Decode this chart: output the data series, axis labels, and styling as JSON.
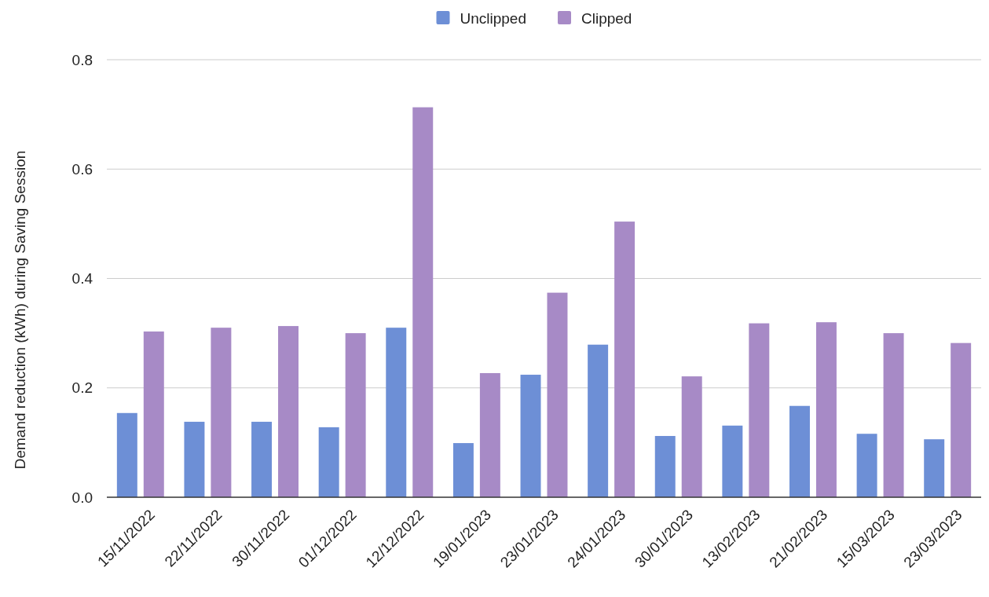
{
  "chart_data": {
    "type": "bar",
    "ylabel": "Demand reduction (kWh) during Saving Session",
    "categories": [
      "15/11/2022",
      "22/11/2022",
      "30/11/2022",
      "01/12/2022",
      "12/12/2022",
      "19/01/2023",
      "23/01/2023",
      "24/01/2023",
      "30/01/2023",
      "13/02/2023",
      "21/02/2023",
      "15/03/2023",
      "23/03/2023"
    ],
    "series": [
      {
        "name": "Unclipped",
        "color": "#6d8fd6",
        "values": [
          0.154,
          0.138,
          0.138,
          0.128,
          0.31,
          0.099,
          0.224,
          0.279,
          0.112,
          0.131,
          0.167,
          0.116,
          0.106
        ]
      },
      {
        "name": "Clipped",
        "color": "#a78ac6",
        "values": [
          0.303,
          0.31,
          0.313,
          0.3,
          0.713,
          0.227,
          0.374,
          0.504,
          0.221,
          0.318,
          0.32,
          0.3,
          0.282
        ]
      }
    ],
    "ylim": [
      0,
      0.8
    ],
    "yticks": [
      {
        "value": 0,
        "label": "0.0"
      },
      0.2,
      0.4,
      0.6,
      0.8
    ],
    "grid": "y",
    "legend": "top"
  }
}
